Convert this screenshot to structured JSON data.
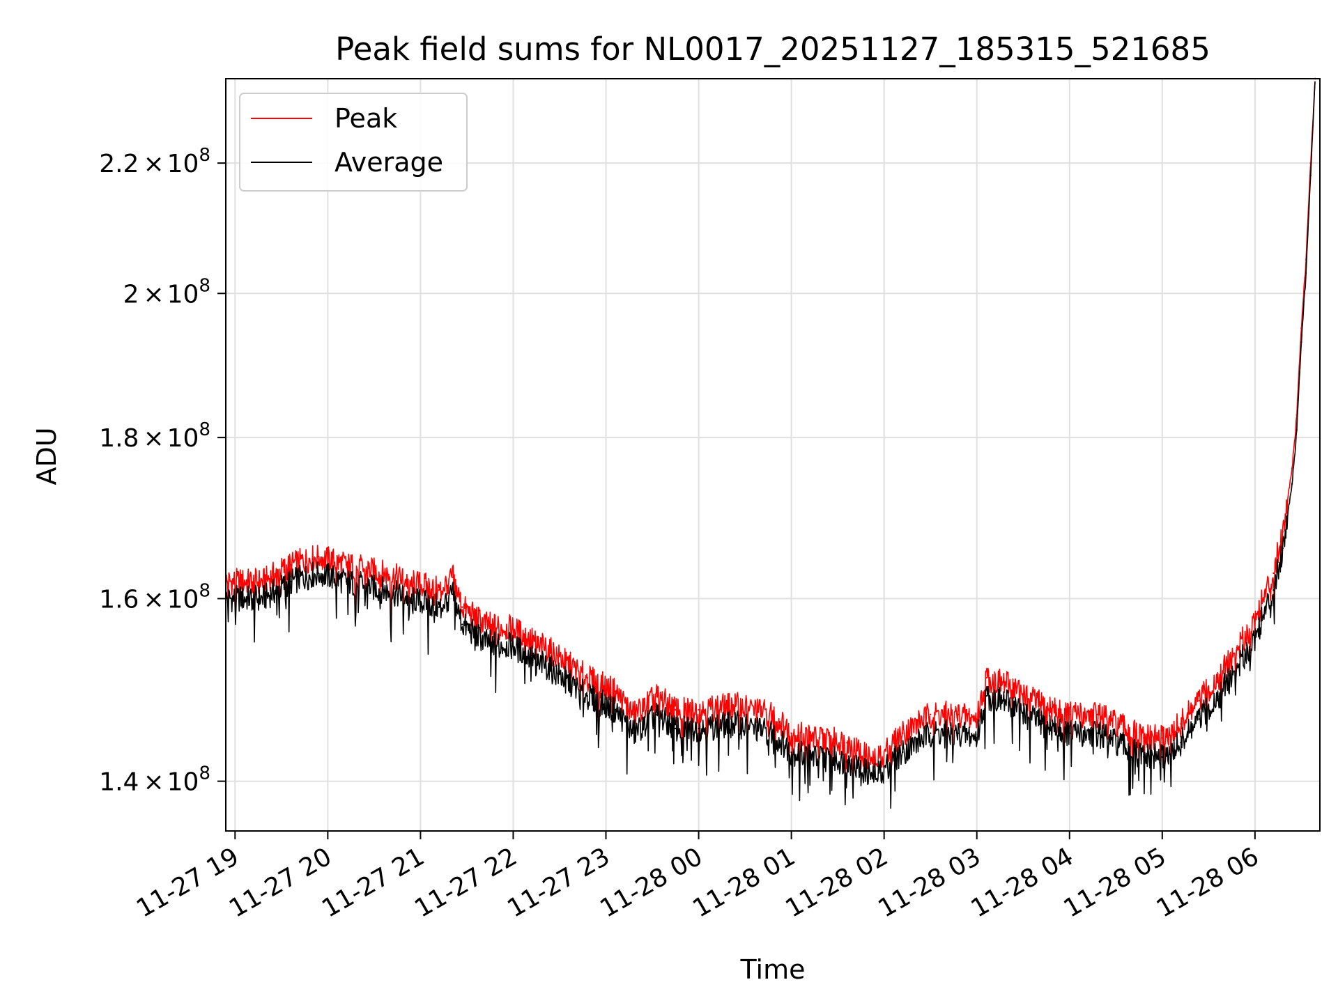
{
  "chart_data": {
    "type": "line",
    "title": "Peak field sums for NL0017_20251127_185315_521685",
    "xlabel": "Time",
    "ylabel": "ADU",
    "yscale": "log",
    "ylim": [
      135000000,
      234000000
    ],
    "xlim_hours": [
      18.9,
      30.7
    ],
    "grid": true,
    "legend_position": "top-left",
    "x_ticks": [
      {
        "label": "11-27 19",
        "hour": 19
      },
      {
        "label": "11-27 20",
        "hour": 20
      },
      {
        "label": "11-27 21",
        "hour": 21
      },
      {
        "label": "11-27 22",
        "hour": 22
      },
      {
        "label": "11-27 23",
        "hour": 23
      },
      {
        "label": "11-28 00",
        "hour": 24
      },
      {
        "label": "11-28 01",
        "hour": 25
      },
      {
        "label": "11-28 02",
        "hour": 26
      },
      {
        "label": "11-28 03",
        "hour": 27
      },
      {
        "label": "11-28 04",
        "hour": 28
      },
      {
        "label": "11-28 05",
        "hour": 29
      },
      {
        "label": "11-28 06",
        "hour": 30
      }
    ],
    "y_ticks": [
      {
        "value": 140000000,
        "mantissa": "1.4",
        "exponent": "8"
      },
      {
        "value": 160000000,
        "mantissa": "1.6",
        "exponent": "8"
      },
      {
        "value": 180000000,
        "mantissa": "1.8",
        "exponent": "8"
      },
      {
        "value": 200000000,
        "mantissa": "2",
        "exponent": "8"
      },
      {
        "value": 220000000,
        "mantissa": "2.2",
        "exponent": "8"
      }
    ],
    "times_symbol": "×",
    "series": [
      {
        "name": "Peak",
        "color": "#ff0000",
        "x_hours": [
          18.9,
          19.3,
          19.6,
          19.9,
          20.2,
          20.6,
          20.9,
          21.2,
          21.35,
          21.45,
          21.7,
          22.0,
          22.4,
          22.8,
          23.1,
          23.3,
          23.55,
          23.75,
          24.0,
          24.4,
          24.8,
          25.0,
          25.3,
          25.6,
          25.9,
          26.2,
          26.5,
          26.8,
          27.0,
          27.1,
          27.4,
          27.7,
          28.0,
          28.3,
          28.6,
          28.8,
          29.0,
          29.2,
          29.4,
          29.6,
          29.8,
          30.0,
          30.2,
          30.3,
          30.4,
          30.45,
          30.5,
          30.55,
          30.6,
          30.65
        ],
        "values": [
          162000000,
          162000000,
          164000000,
          165000000,
          164000000,
          163000000,
          162000000,
          161000000,
          162500000,
          159000000,
          157000000,
          156500000,
          154000000,
          151000000,
          149500000,
          147000000,
          149000000,
          147500000,
          147500000,
          148000000,
          147000000,
          145000000,
          144500000,
          144000000,
          142000000,
          145000000,
          147000000,
          147000000,
          146500000,
          151000000,
          150000000,
          148000000,
          147000000,
          147000000,
          145500000,
          144500000,
          144500000,
          146000000,
          148500000,
          151000000,
          154000000,
          157500000,
          163000000,
          168000000,
          176000000,
          183000000,
          195000000,
          205000000,
          220000000,
          234000000
        ]
      },
      {
        "name": "Average",
        "color": "#000000",
        "x_hours": [
          18.9,
          19.3,
          19.6,
          19.9,
          20.2,
          20.6,
          20.9,
          21.2,
          21.35,
          21.45,
          21.7,
          22.0,
          22.4,
          22.8,
          23.1,
          23.3,
          23.55,
          23.75,
          24.0,
          24.4,
          24.8,
          25.0,
          25.3,
          25.6,
          25.9,
          26.2,
          26.5,
          26.8,
          27.0,
          27.1,
          27.4,
          27.7,
          28.0,
          28.3,
          28.6,
          28.8,
          29.0,
          29.2,
          29.4,
          29.6,
          29.8,
          30.0,
          30.2,
          30.3,
          30.4,
          30.45,
          30.5,
          30.55,
          30.6,
          30.65
        ],
        "values": [
          160000000,
          160000000,
          162000000,
          163000000,
          162000000,
          161000000,
          160000000,
          159000000,
          160500000,
          157000000,
          155000000,
          154500000,
          152000000,
          149000000,
          147500000,
          145000000,
          147000000,
          145500000,
          145500000,
          146000000,
          145000000,
          143000000,
          142500000,
          142000000,
          140500000,
          143000000,
          145000000,
          145000000,
          144500000,
          149000000,
          148000000,
          146000000,
          145000000,
          145000000,
          143500000,
          142500000,
          142500000,
          144000000,
          146500000,
          149000000,
          152000000,
          155500000,
          161000000,
          166000000,
          174000000,
          181000000,
          193000000,
          203000000,
          218000000,
          234000000
        ]
      }
    ],
    "legend": [
      {
        "label": "Peak",
        "color": "#ff0000"
      },
      {
        "label": "Average",
        "color": "#000000"
      }
    ]
  }
}
